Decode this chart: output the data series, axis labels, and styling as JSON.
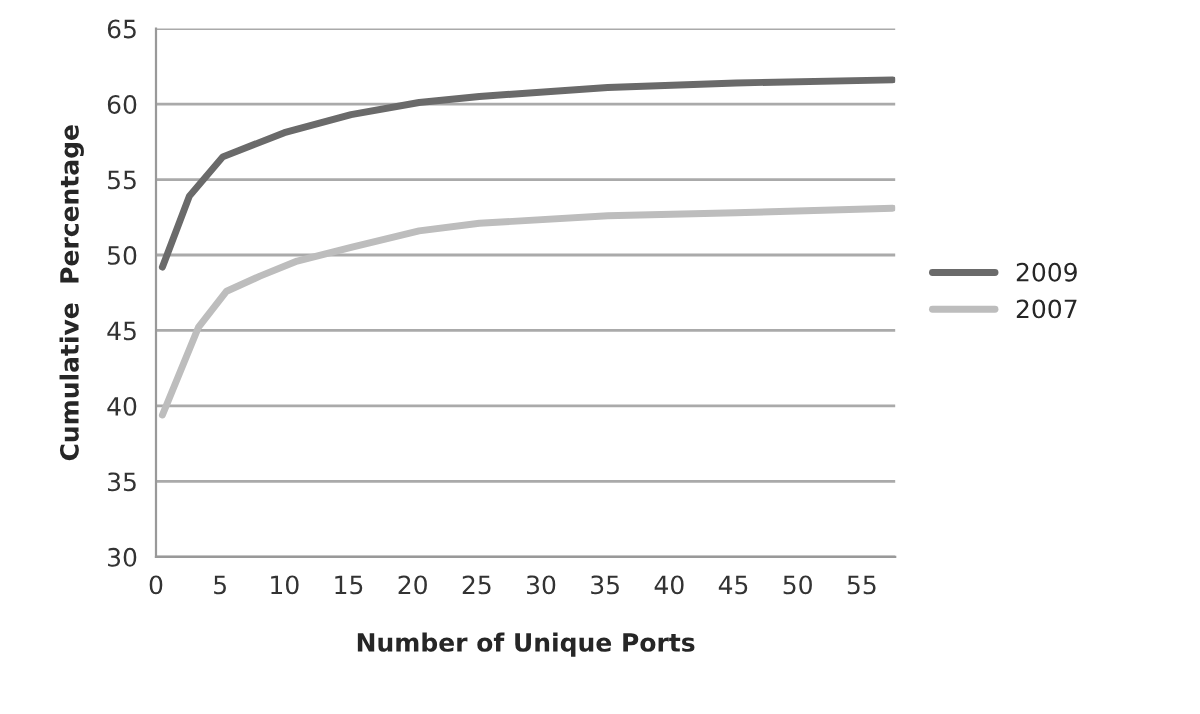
{
  "chart_data": {
    "type": "line",
    "xlabel": "Number of Unique Ports",
    "ylabel": "Cumulative  Percentage",
    "xlim": [
      0,
      57.6
    ],
    "xticks": [
      0,
      5,
      10,
      15,
      20,
      25,
      30,
      35,
      40,
      45,
      50,
      55
    ],
    "ylim": [
      30,
      65
    ],
    "yticks": [
      30,
      35,
      40,
      45,
      50,
      55,
      60,
      65
    ],
    "grid": "y",
    "legend": "right",
    "marker": "none",
    "line_style": "solid",
    "series": [
      {
        "name": "2009",
        "color": "#6a6a6a",
        "x": [
          0.5,
          2.6,
          5.2,
          10,
          15.2,
          20.5,
          25.2,
          35.2,
          45.2,
          57.4
        ],
        "values": [
          49.2,
          53.9,
          56.5,
          58.1,
          59.3,
          60.1,
          60.5,
          61.1,
          61.4,
          61.6
        ]
      },
      {
        "name": "2007",
        "color": "#bdbdbd",
        "x": [
          0.5,
          3.3,
          5.5,
          8.1,
          11,
          15.2,
          20.5,
          25.2,
          35.2,
          45.2,
          57.4
        ],
        "values": [
          39.4,
          45.2,
          47.6,
          48.6,
          49.6,
          50.5,
          51.6,
          52.1,
          52.6,
          52.8,
          53.1
        ]
      }
    ]
  }
}
